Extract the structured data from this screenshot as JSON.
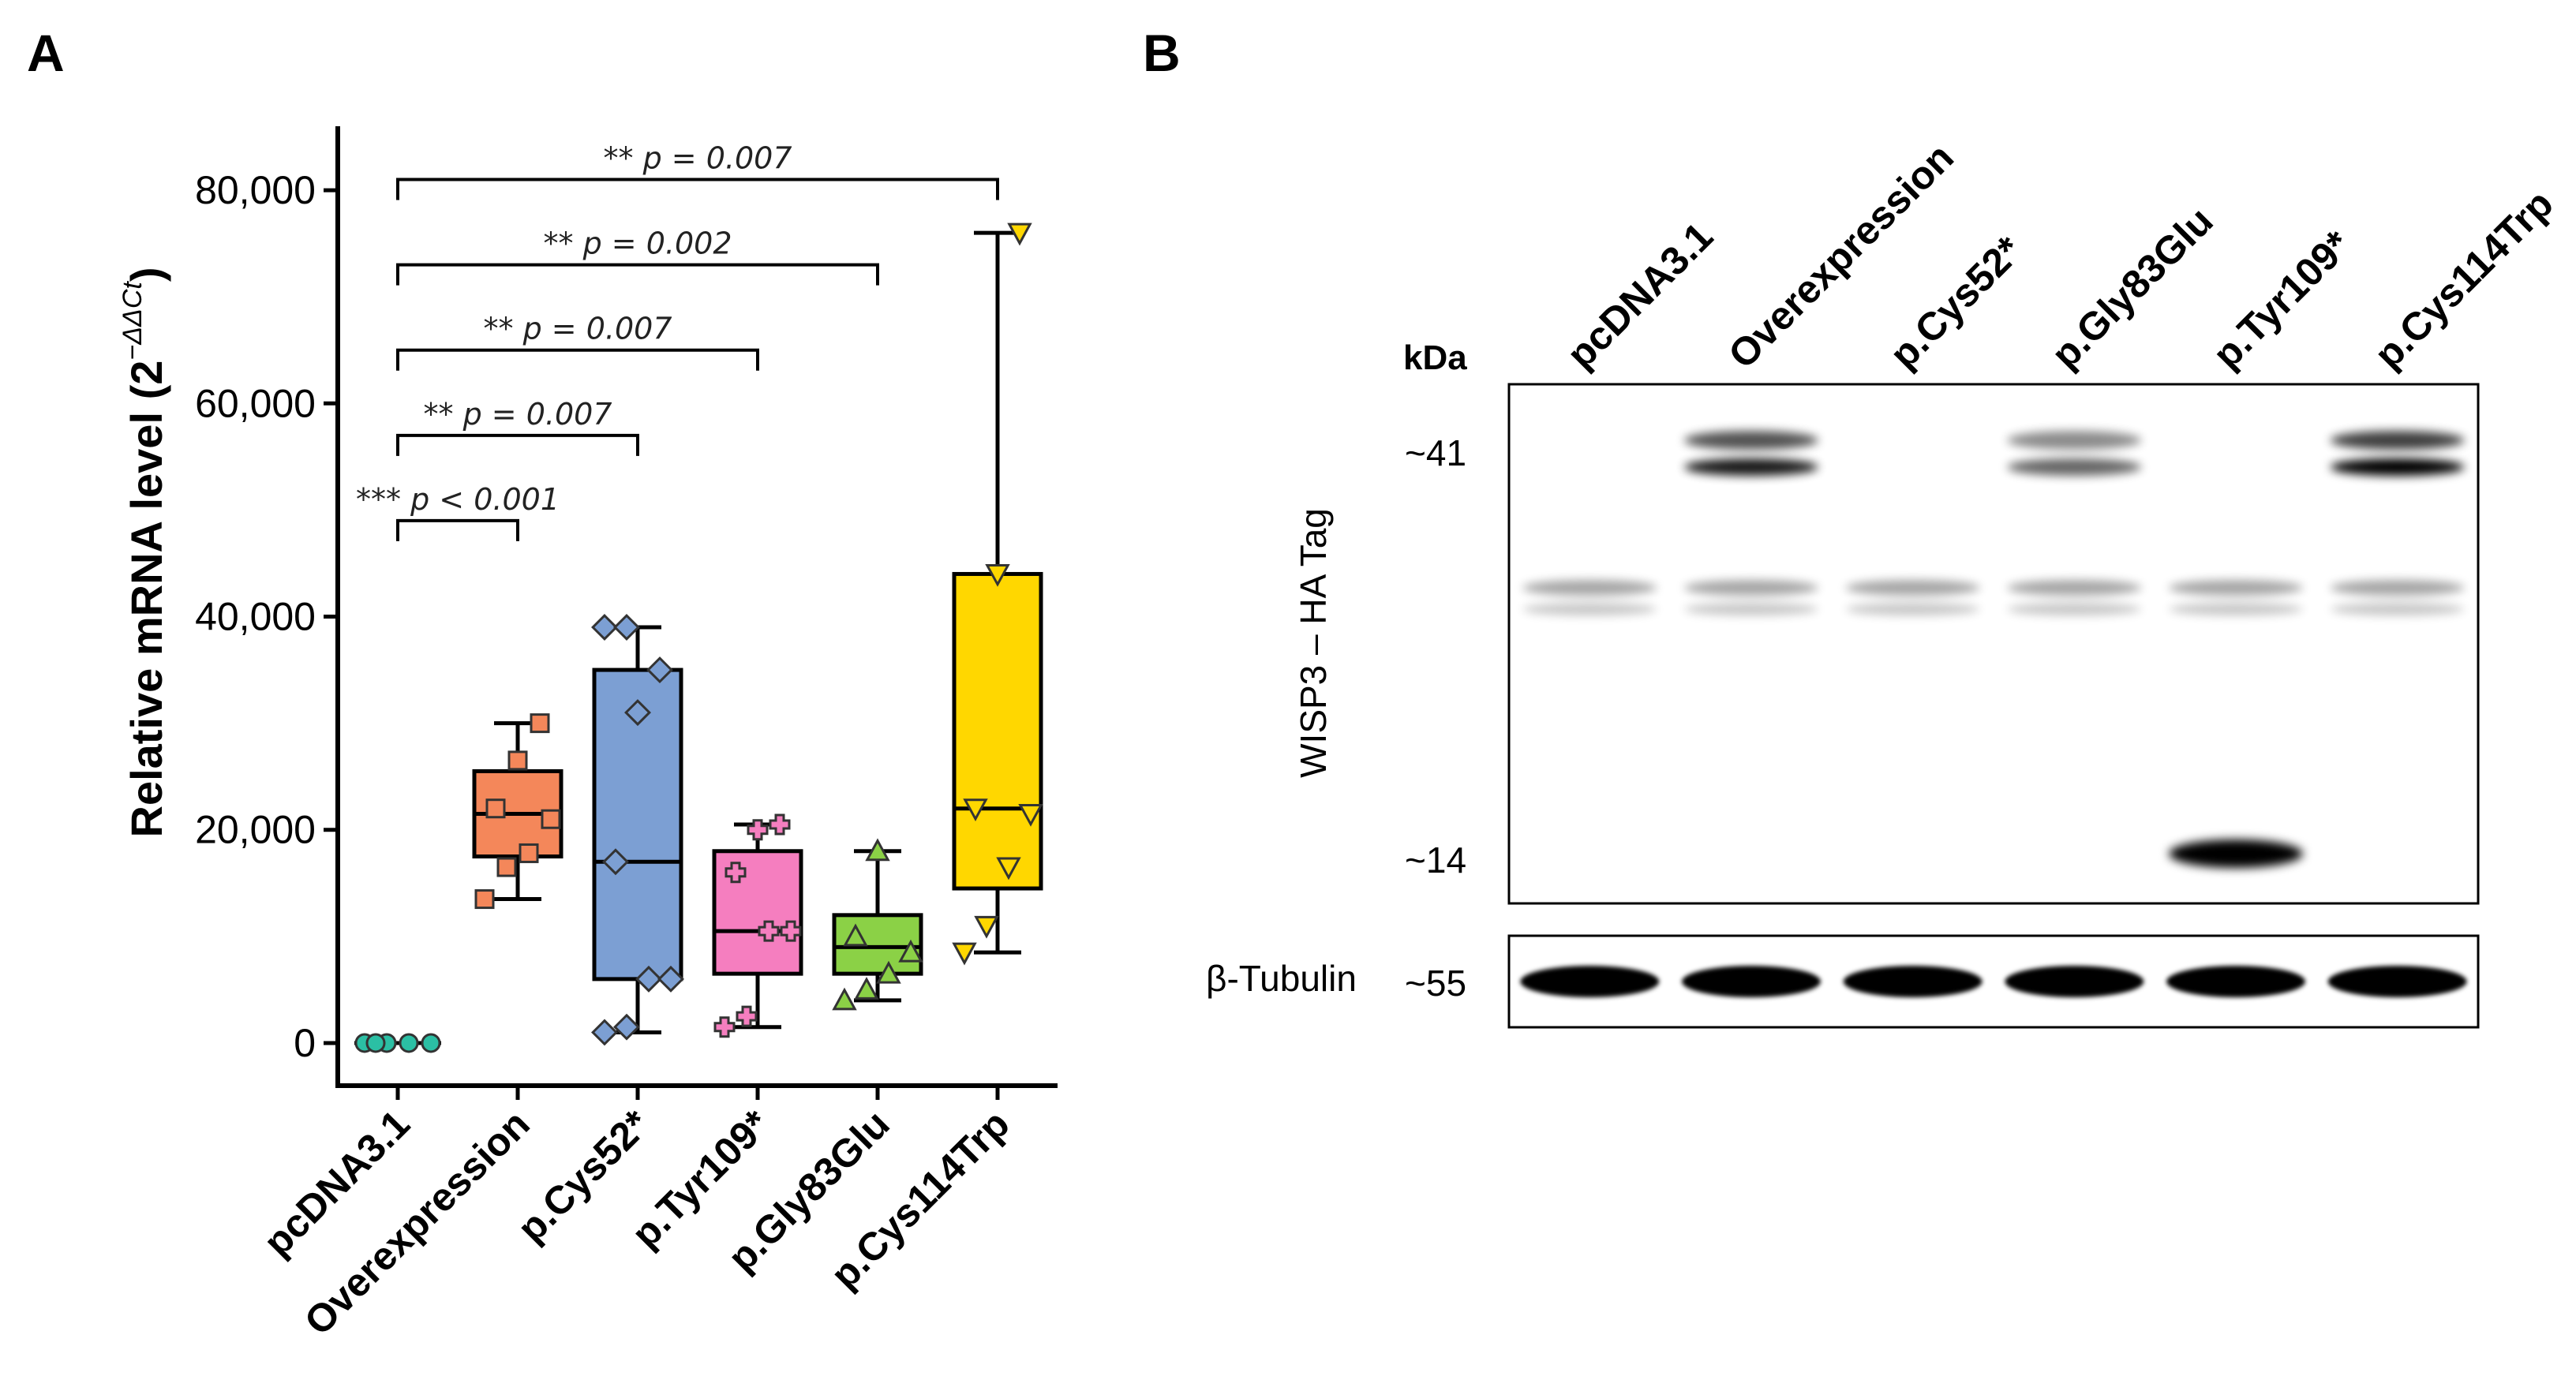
{
  "panel_a_label": "A",
  "panel_b_label": "B",
  "chart_data": {
    "type": "box",
    "ylabel": "Relative mRNA level (2",
    "ylabel_superscript": "−ΔΔCt",
    "ylabel_close": ")",
    "ylim": [
      -4000,
      86000
    ],
    "yticks": [
      0,
      20000,
      40000,
      60000,
      80000
    ],
    "ytick_labels": [
      "0",
      "20,000",
      "40,000",
      "60,000",
      "80,000"
    ],
    "categories": [
      "pcDNA3.1",
      "Overexpression",
      "p.Cys52*",
      "p.Tyr109*",
      "p.Gly83Glu",
      "p.Cys114Trp"
    ],
    "groups": [
      {
        "name": "pcDNA3.1",
        "color": "#2bbfa4",
        "marker": "circle",
        "q1": 0,
        "median": 0,
        "q3": 0,
        "whisker_low": 0,
        "whisker_high": 0,
        "points": [
          0,
          0,
          0,
          0,
          0
        ]
      },
      {
        "name": "Overexpression",
        "color": "#f4875a",
        "marker": "square",
        "q1": 17500,
        "median": 21500,
        "q3": 25500,
        "whisker_low": 13500,
        "whisker_high": 30000,
        "points": [
          13500,
          16500,
          17800,
          21000,
          22000,
          26500,
          30000
        ]
      },
      {
        "name": "p.Cys52*",
        "color": "#7c9fd3",
        "marker": "diamond",
        "q1": 6000,
        "median": 17000,
        "q3": 35000,
        "whisker_low": 1000,
        "whisker_high": 39000,
        "points": [
          1000,
          1500,
          6000,
          6000,
          17000,
          31000,
          35000,
          39000,
          39000
        ]
      },
      {
        "name": "p.Tyr109*",
        "color": "#f57ebf",
        "marker": "plus",
        "q1": 6500,
        "median": 10500,
        "q3": 18000,
        "whisker_low": 1500,
        "whisker_high": 20500,
        "points": [
          1500,
          2500,
          10500,
          10500,
          16000,
          20000,
          20500
        ]
      },
      {
        "name": "p.Gly83Glu",
        "color": "#8bd146",
        "marker": "triangle-up",
        "q1": 6500,
        "median": 9000,
        "q3": 12000,
        "whisker_low": 4000,
        "whisker_high": 18000,
        "points": [
          4000,
          5000,
          6500,
          8500,
          10000,
          18000
        ]
      },
      {
        "name": "p.Cys114Trp",
        "color": "#ffd700",
        "marker": "triangle-down",
        "q1": 14500,
        "median": 22000,
        "q3": 44000,
        "whisker_low": 8500,
        "whisker_high": 76000,
        "points": [
          8500,
          11000,
          16500,
          21500,
          22000,
          44000,
          76000
        ]
      }
    ],
    "comparisons": [
      {
        "from": "pcDNA3.1",
        "to": "Overexpression",
        "stars": "***",
        "p_text": "p < 0.001",
        "y": 49000
      },
      {
        "from": "pcDNA3.1",
        "to": "p.Cys52*",
        "stars": "**",
        "p_text": "p = 0.007",
        "y": 57000
      },
      {
        "from": "pcDNA3.1",
        "to": "p.Tyr109*",
        "stars": "**",
        "p_text": "p = 0.007",
        "y": 65000
      },
      {
        "from": "pcDNA3.1",
        "to": "p.Gly83Glu",
        "stars": "**",
        "p_text": "p = 0.002",
        "y": 73000
      },
      {
        "from": "pcDNA3.1",
        "to": "p.Cys114Trp",
        "stars": "**",
        "p_text": "p = 0.007",
        "y": 81000
      }
    ]
  },
  "blot": {
    "lanes": [
      "pcDNA3.1",
      "Overexpression",
      "p.Cys52*",
      "p.Gly83Glu",
      "p.Tyr109*",
      "p.Cys114Trp"
    ],
    "unit_label": "kDa",
    "target_label": "WISP3 – HA Tag",
    "loading_label": "β-Tubulin",
    "markers": [
      "~41",
      "~14"
    ],
    "loading_marker": "~55"
  }
}
